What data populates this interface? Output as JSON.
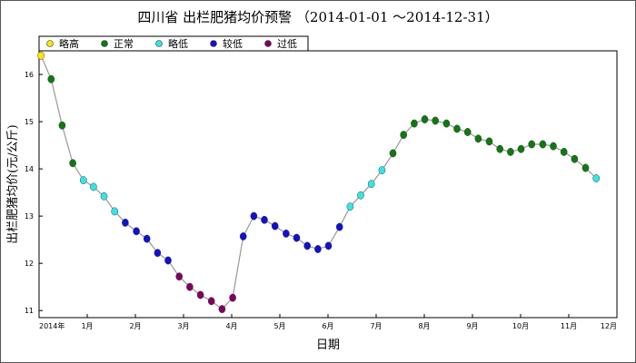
{
  "chart_data": {
    "type": "line",
    "title": "四川省 出栏肥猪均价预警 （2014-01-01 ～2014-12-31）",
    "xlabel": "日期",
    "ylabel": "出栏肥猪均价(元/公斤)",
    "xlim": [
      0,
      12
    ],
    "ylim": [
      10.85,
      16.5
    ],
    "x_ticks": [
      {
        "value": 0,
        "label": "2014年"
      },
      {
        "value": 1,
        "label": "1月"
      },
      {
        "value": 2,
        "label": "2月"
      },
      {
        "value": 3,
        "label": "3月"
      },
      {
        "value": 4,
        "label": "4月"
      },
      {
        "value": 5,
        "label": "5月"
      },
      {
        "value": 6,
        "label": "6月"
      },
      {
        "value": 7,
        "label": "7月"
      },
      {
        "value": 8,
        "label": "8月"
      },
      {
        "value": 9,
        "label": "9月"
      },
      {
        "value": 10,
        "label": "10月"
      },
      {
        "value": 11,
        "label": "11月"
      },
      {
        "value": 12,
        "label": "12月"
      }
    ],
    "y_ticks": [
      11,
      12,
      13,
      14,
      15,
      16
    ],
    "grid": false,
    "legend_position": "top-left",
    "legend": [
      {
        "key": "high",
        "label": "略高",
        "color": "#ffe600"
      },
      {
        "key": "normal",
        "label": "正常",
        "color": "#0e7a0e"
      },
      {
        "key": "slightly_low",
        "label": "略低",
        "color": "#33e6e6"
      },
      {
        "key": "low",
        "label": "较低",
        "color": "#1010d0"
      },
      {
        "key": "too_low",
        "label": "过低",
        "color": "#800060"
      }
    ],
    "line_color": "#999999",
    "points": [
      {
        "x": 0.04,
        "y": 16.4,
        "level": "high"
      },
      {
        "x": 0.25,
        "y": 15.9,
        "level": "normal"
      },
      {
        "x": 0.48,
        "y": 14.92,
        "level": "normal"
      },
      {
        "x": 0.7,
        "y": 14.12,
        "level": "normal"
      },
      {
        "x": 0.92,
        "y": 13.76,
        "level": "slightly_low"
      },
      {
        "x": 1.13,
        "y": 13.62,
        "level": "slightly_low"
      },
      {
        "x": 1.35,
        "y": 13.42,
        "level": "slightly_low"
      },
      {
        "x": 1.57,
        "y": 13.1,
        "level": "slightly_low"
      },
      {
        "x": 1.79,
        "y": 12.86,
        "level": "low"
      },
      {
        "x": 2.02,
        "y": 12.68,
        "level": "low"
      },
      {
        "x": 2.24,
        "y": 12.52,
        "level": "low"
      },
      {
        "x": 2.46,
        "y": 12.22,
        "level": "low"
      },
      {
        "x": 2.68,
        "y": 12.06,
        "level": "low"
      },
      {
        "x": 2.91,
        "y": 11.72,
        "level": "too_low"
      },
      {
        "x": 3.13,
        "y": 11.5,
        "level": "too_low"
      },
      {
        "x": 3.35,
        "y": 11.33,
        "level": "too_low"
      },
      {
        "x": 3.58,
        "y": 11.2,
        "level": "too_low"
      },
      {
        "x": 3.8,
        "y": 11.03,
        "level": "too_low"
      },
      {
        "x": 4.02,
        "y": 11.27,
        "level": "too_low"
      },
      {
        "x": 4.24,
        "y": 12.57,
        "level": "low"
      },
      {
        "x": 4.46,
        "y": 13.0,
        "level": "low"
      },
      {
        "x": 4.68,
        "y": 12.92,
        "level": "low"
      },
      {
        "x": 4.9,
        "y": 12.79,
        "level": "low"
      },
      {
        "x": 5.13,
        "y": 12.63,
        "level": "low"
      },
      {
        "x": 5.35,
        "y": 12.54,
        "level": "low"
      },
      {
        "x": 5.57,
        "y": 12.37,
        "level": "low"
      },
      {
        "x": 5.79,
        "y": 12.3,
        "level": "low"
      },
      {
        "x": 6.01,
        "y": 12.37,
        "level": "low"
      },
      {
        "x": 6.24,
        "y": 12.77,
        "level": "low"
      },
      {
        "x": 6.46,
        "y": 13.2,
        "level": "slightly_low"
      },
      {
        "x": 6.68,
        "y": 13.44,
        "level": "slightly_low"
      },
      {
        "x": 6.9,
        "y": 13.68,
        "level": "slightly_low"
      },
      {
        "x": 7.12,
        "y": 13.97,
        "level": "slightly_low"
      },
      {
        "x": 7.35,
        "y": 14.33,
        "level": "normal"
      },
      {
        "x": 7.57,
        "y": 14.72,
        "level": "normal"
      },
      {
        "x": 7.79,
        "y": 14.96,
        "level": "normal"
      },
      {
        "x": 8.01,
        "y": 15.05,
        "level": "normal"
      },
      {
        "x": 8.23,
        "y": 15.02,
        "level": "normal"
      },
      {
        "x": 8.46,
        "y": 14.96,
        "level": "normal"
      },
      {
        "x": 8.68,
        "y": 14.85,
        "level": "normal"
      },
      {
        "x": 8.9,
        "y": 14.78,
        "level": "normal"
      },
      {
        "x": 9.12,
        "y": 14.64,
        "level": "normal"
      },
      {
        "x": 9.35,
        "y": 14.58,
        "level": "normal"
      },
      {
        "x": 9.57,
        "y": 14.42,
        "level": "normal"
      },
      {
        "x": 9.79,
        "y": 14.36,
        "level": "normal"
      },
      {
        "x": 10.01,
        "y": 14.42,
        "level": "normal"
      },
      {
        "x": 10.23,
        "y": 14.52,
        "level": "normal"
      },
      {
        "x": 10.46,
        "y": 14.52,
        "level": "normal"
      },
      {
        "x": 10.68,
        "y": 14.48,
        "level": "normal"
      },
      {
        "x": 10.9,
        "y": 14.36,
        "level": "normal"
      },
      {
        "x": 11.12,
        "y": 14.21,
        "level": "normal"
      },
      {
        "x": 11.35,
        "y": 14.02,
        "level": "normal"
      },
      {
        "x": 11.57,
        "y": 13.8,
        "level": "slightly_low"
      }
    ]
  }
}
